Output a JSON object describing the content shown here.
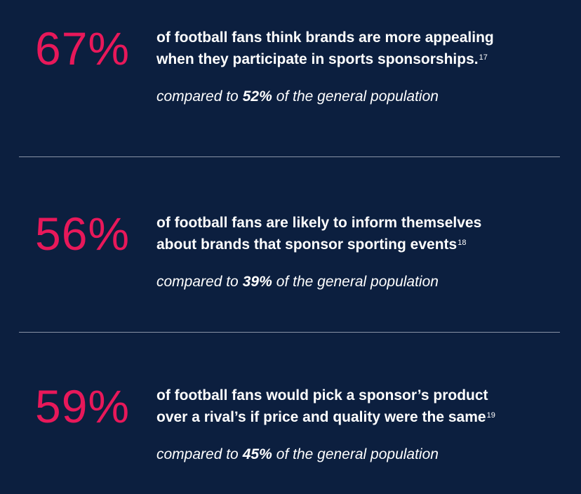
{
  "stats": [
    {
      "value": "67%",
      "text_lines": [
        "of football fans think brands are more appealing",
        "when they participate in sports sponsorships."
      ],
      "footnote": "17",
      "comparison": {
        "prefix": "compared to",
        "value": "52%",
        "suffix": "of the general population"
      }
    },
    {
      "value": "56%",
      "text_lines": [
        "of football fans are likely to inform themselves",
        "about brands that sponsor sporting events"
      ],
      "footnote": "18",
      "comparison": {
        "prefix": "compared to",
        "value": "39%",
        "suffix": "of the general population"
      }
    },
    {
      "value": "59%",
      "text_lines": [
        "of football fans would pick a sponsor’s product",
        "over a rival’s if price and quality were the same"
      ],
      "footnote": "19",
      "comparison": {
        "prefix": "compared to",
        "value": "45%",
        "suffix": "of the general population"
      }
    }
  ]
}
